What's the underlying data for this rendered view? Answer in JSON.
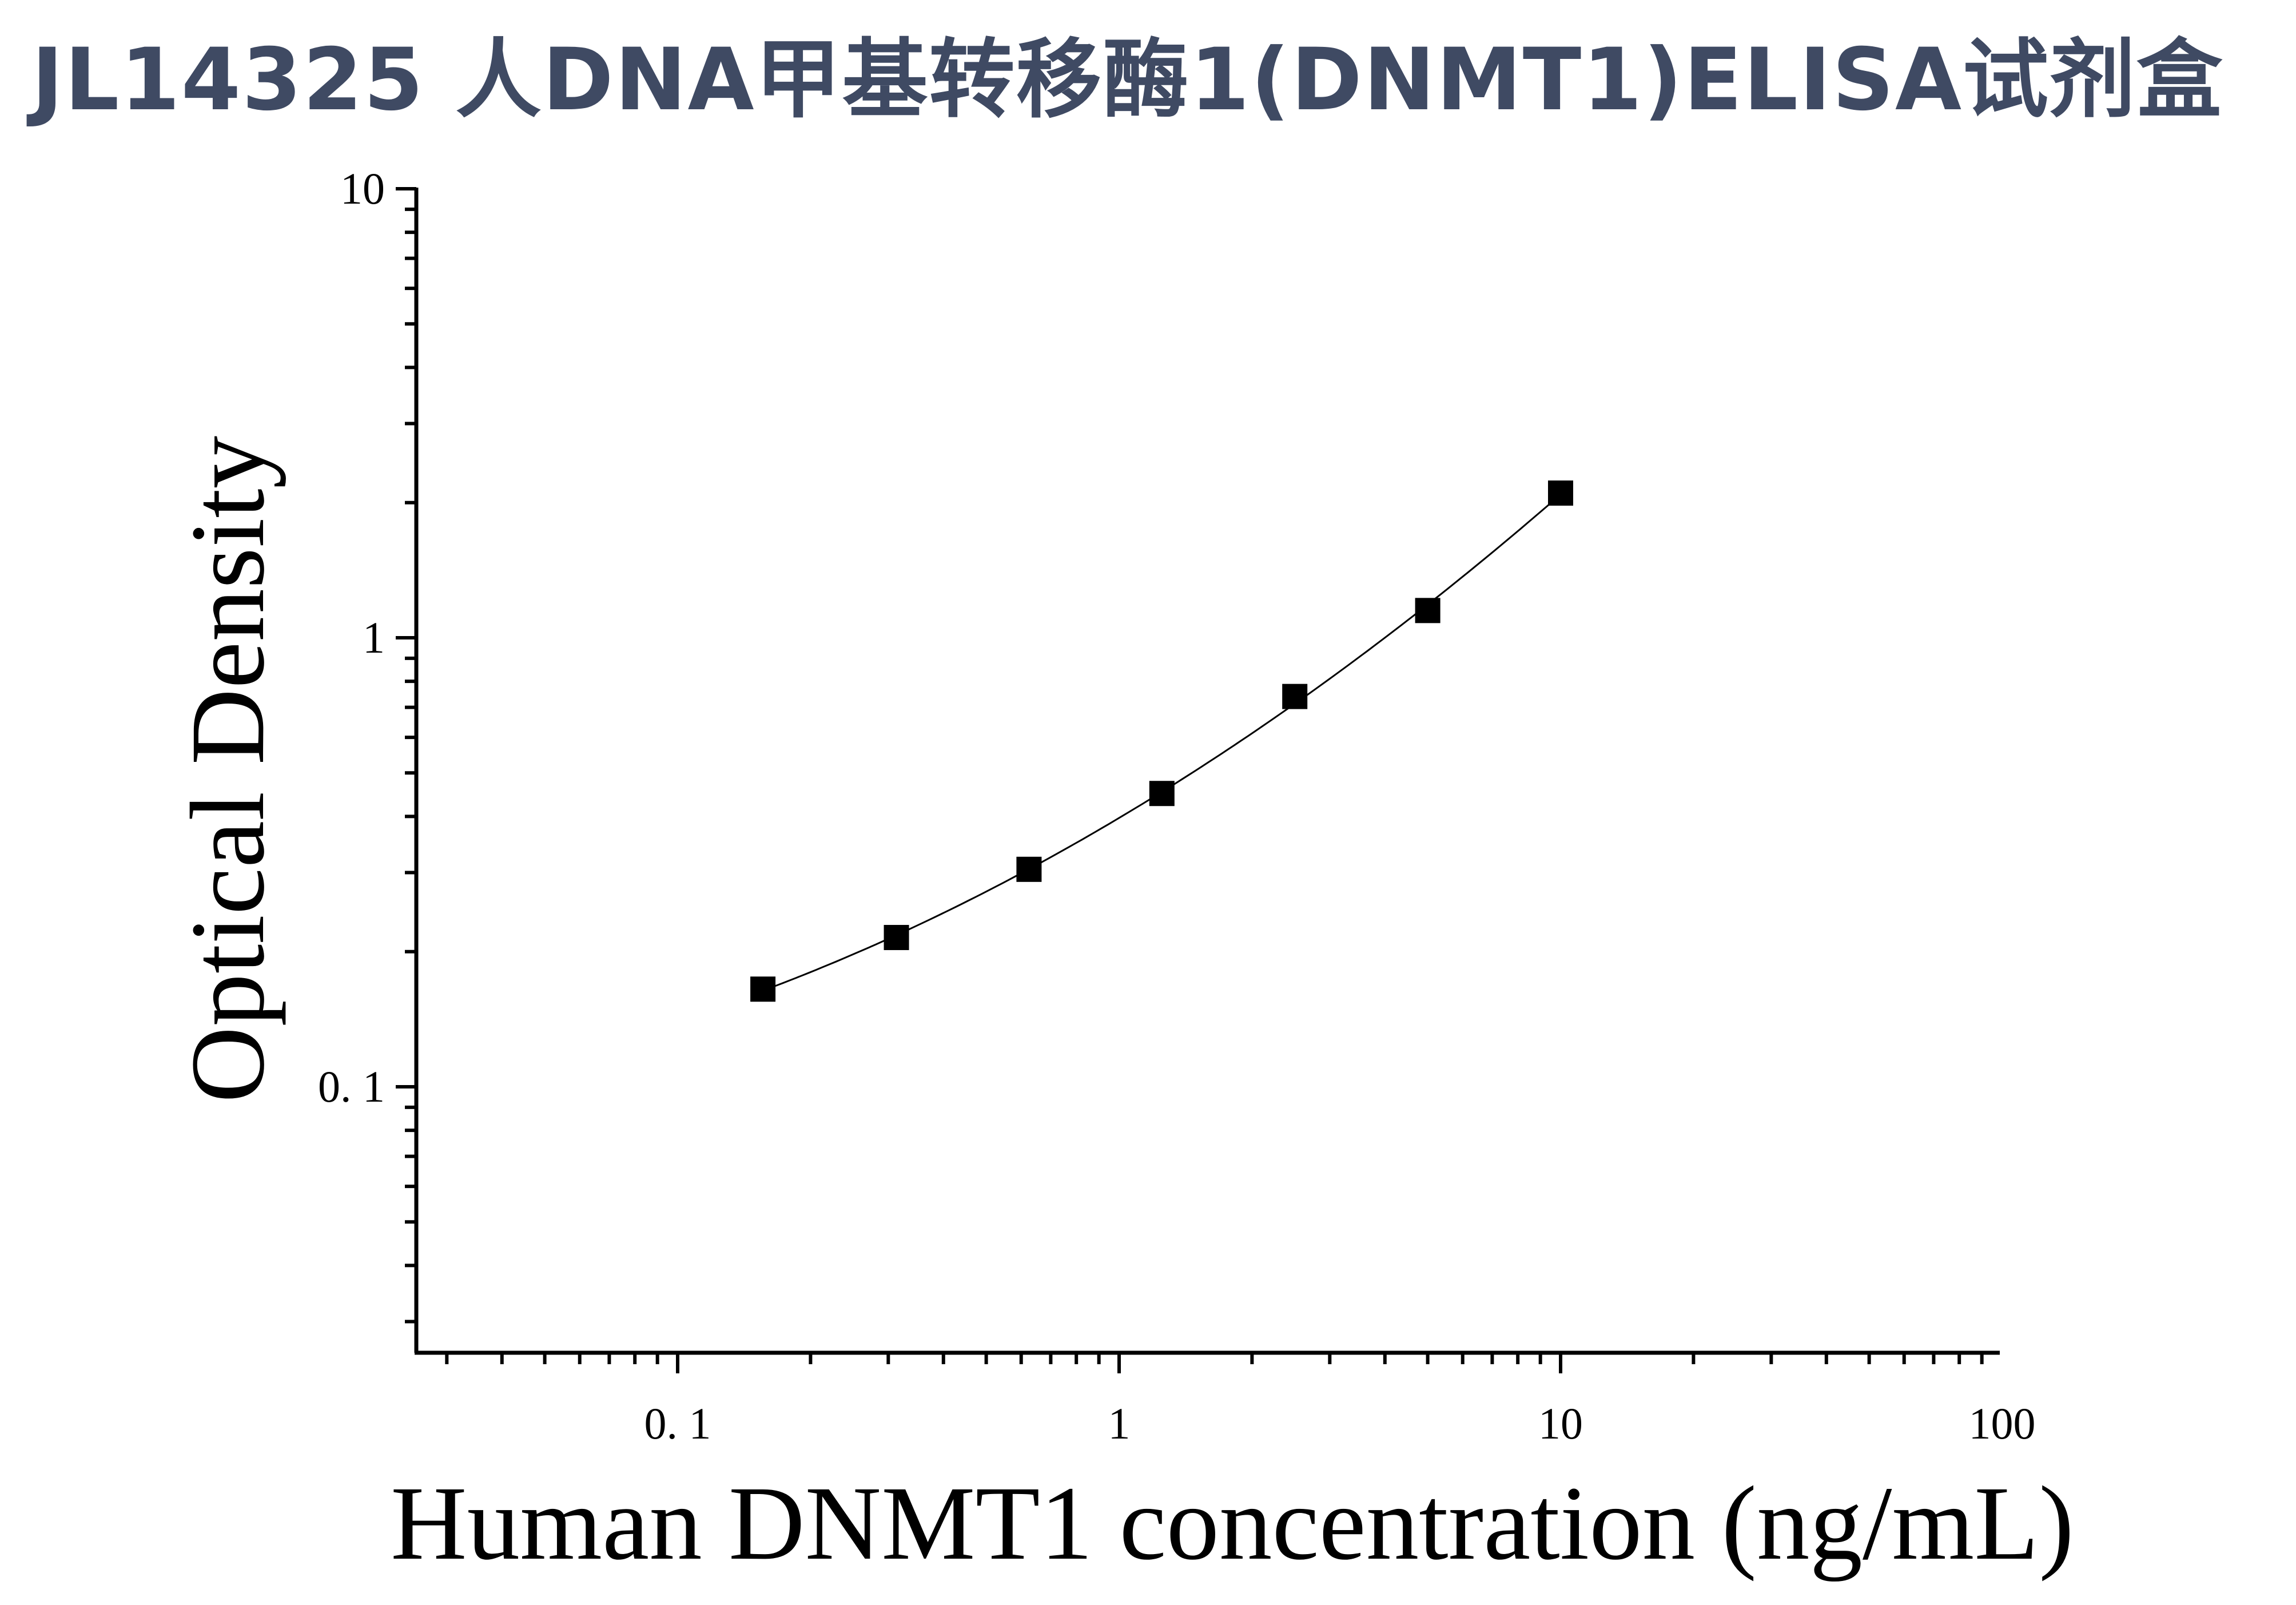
{
  "title": "JL14325 人DNA甲基转移酶1(DNMT1)ELISA试剂盒",
  "chart_data": {
    "type": "scatter",
    "xlabel": "Human DNMT1 concentration (ng/mL)",
    "ylabel": "Optical Density",
    "xscale": "log",
    "yscale": "log",
    "xlim": [
      0.025,
      100
    ],
    "ylim": [
      0.025,
      10
    ],
    "x_ticks": [
      {
        "value": 0.1,
        "label": "0. 1"
      },
      {
        "value": 1,
        "label": "1"
      },
      {
        "value": 10,
        "label": "10"
      },
      {
        "value": 100,
        "label": "100"
      }
    ],
    "y_ticks": [
      {
        "value": 0.1,
        "label": "0. 1"
      },
      {
        "value": 1,
        "label": "1"
      },
      {
        "value": 10,
        "label": "10"
      }
    ],
    "grid": false,
    "legend": "none",
    "marker": "square",
    "marker_color": "#000000",
    "line_color": "#000000",
    "series": [
      {
        "x": [
          0.156,
          0.313,
          0.625,
          1.25,
          2.5,
          5,
          10
        ],
        "y": [
          0.165,
          0.215,
          0.305,
          0.45,
          0.74,
          1.15,
          2.1
        ]
      }
    ],
    "fit_curve": true
  }
}
